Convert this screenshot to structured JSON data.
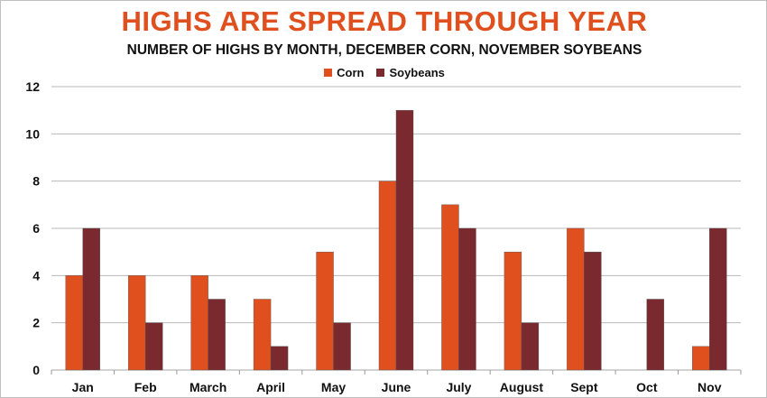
{
  "colors": {
    "corn": "#e0501e",
    "soybeans": "#7a2a2e",
    "grid": "#b8b8b8",
    "title": "#e0501e"
  },
  "chart_data": {
    "type": "bar",
    "title": "HIGHS ARE SPREAD THROUGH YEAR",
    "subtitle": "NUMBER OF HIGHS BY MONTH, DECEMBER CORN, NOVEMBER SOYBEANS",
    "categories": [
      "Jan",
      "Feb",
      "March",
      "April",
      "May",
      "June",
      "July",
      "August",
      "Sept",
      "Oct",
      "Nov"
    ],
    "series": [
      {
        "name": "Corn",
        "values": [
          4,
          4,
          4,
          3,
          5,
          8,
          7,
          5,
          6,
          0,
          1
        ]
      },
      {
        "name": "Soybeans",
        "values": [
          6,
          2,
          3,
          1,
          2,
          11,
          6,
          2,
          5,
          3,
          6
        ]
      }
    ],
    "ylim": [
      0,
      12
    ],
    "yticks": [
      "0",
      "2",
      "4",
      "6",
      "8",
      "10",
      "12"
    ],
    "grid": true,
    "legend_position": "top-center"
  }
}
